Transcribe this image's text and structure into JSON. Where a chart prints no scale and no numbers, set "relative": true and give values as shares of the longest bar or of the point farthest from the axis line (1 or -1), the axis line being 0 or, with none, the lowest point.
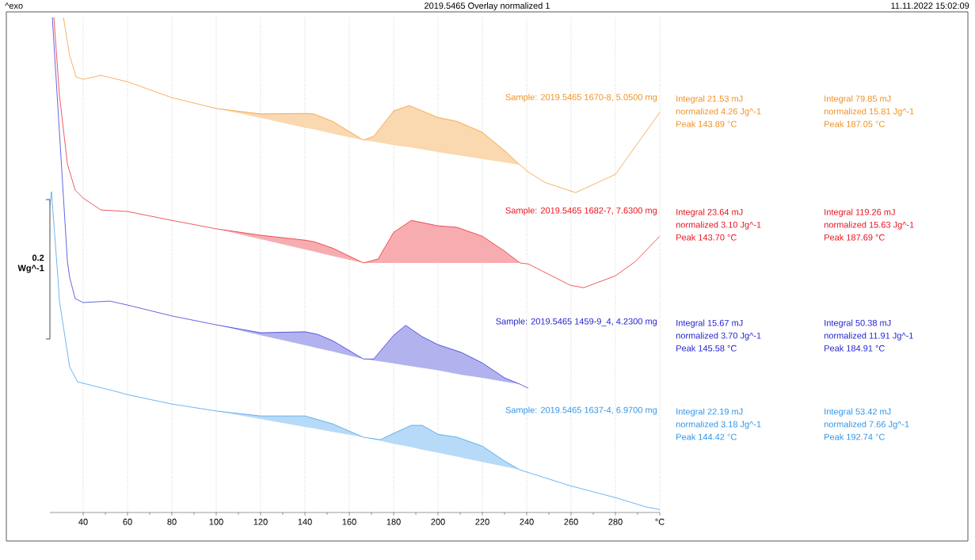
{
  "chart_data": {
    "type": "line",
    "title": "2019.5465 Overlay normalized 1",
    "relative": true,
    "xlim": [
      25,
      300
    ],
    "xticks": [
      40,
      60,
      80,
      100,
      120,
      140,
      160,
      180,
      200,
      220,
      240,
      260,
      280,
      {
        "value": 300,
        "label": "°C"
      }
    ],
    "grid": "x",
    "annotations": [
      "^exo",
      "11.11.2022 15:02:09",
      "0.2 Wg^-1",
      "Integral 21.53 mJ",
      "normalized 4.26 Jg^-1",
      "Peak 143.89 °C",
      "Integral 79.85 mJ",
      "normalized 15.81 Jg^-1",
      "Peak 187.05 °C",
      "Integral 23.64 mJ",
      "normalized 3.10 Jg^-1",
      "Peak 143.70 °C",
      "Integral 119.26 mJ",
      "normalized 15.63 Jg^-1",
      "Peak 187.69 °C",
      "Integral 15.67 mJ",
      "normalized 3.70 Jg^-1",
      "Peak 145.58 °C",
      "Integral 50.38 mJ",
      "normalized 11.91 Jg^-1",
      "Peak 184.91 °C",
      "Integral 22.19 mJ",
      "normalized 3.18 Jg^-1",
      "Peak 144.42 °C",
      "Integral 53.42 mJ",
      "normalized 7.66 Jg^-1",
      "Peak 192.74 °C"
    ],
    "series": [
      {
        "name": "Sample: 2019.5465 1670-8, 5.0500 mg",
        "color": "#f0901e",
        "x": [
          31.1,
          33.9,
          36.8,
          40,
          48,
          60,
          80,
          100,
          120,
          140,
          144,
          152.5,
          166.4,
          171,
          180,
          187,
          200,
          208.6,
          220,
          230,
          237,
          240.7,
          248,
          262,
          280,
          300
        ],
        "values": [
          1.0,
          0.923,
          0.88,
          0.875,
          0.883,
          0.87,
          0.838,
          0.816,
          0.805,
          0.806,
          0.805,
          0.79,
          0.752,
          0.76,
          0.811,
          0.822,
          0.798,
          0.79,
          0.768,
          0.731,
          0.702,
          0.688,
          0.667,
          0.646,
          0.683,
          0.808
        ],
        "lower": [
          null,
          null,
          null,
          null,
          null,
          null,
          null,
          0.816,
          0.797,
          0.777,
          0.774,
          0.765,
          0.752,
          0.749,
          0.742,
          0.738,
          0.728,
          0.722,
          0.714,
          0.707,
          0.702,
          null,
          null,
          null,
          null,
          null
        ],
        "upper": [
          null,
          null,
          null,
          null,
          null,
          null,
          null,
          0.816,
          0.805,
          0.806,
          0.805,
          0.79,
          0.752,
          0.76,
          0.811,
          0.822,
          0.798,
          0.79,
          0.768,
          0.731,
          0.702,
          null,
          null,
          null,
          null,
          null
        ]
      },
      {
        "name": "Sample: 2019.5465 1682-7, 7.6300 mg",
        "color": "#e8141e",
        "x": [
          26.8,
          29.3,
          32.9,
          36.4,
          40,
          48,
          60,
          80,
          100,
          120,
          140,
          144,
          152.5,
          166.4,
          173,
          180,
          188,
          200,
          208.6,
          220,
          230,
          237,
          240.7,
          259.6,
          265.7,
          280,
          289,
          300
        ],
        "values": [
          1.0,
          0.843,
          0.704,
          0.651,
          0.635,
          0.611,
          0.608,
          0.59,
          0.573,
          0.56,
          0.55,
          0.547,
          0.534,
          0.504,
          0.512,
          0.566,
          0.59,
          0.579,
          0.576,
          0.558,
          0.528,
          0.504,
          0.502,
          0.459,
          0.454,
          0.478,
          0.507,
          0.558
        ],
        "lower": [
          null,
          null,
          null,
          null,
          null,
          null,
          null,
          null,
          0.573,
          0.552,
          0.531,
          0.527,
          0.518,
          0.504,
          0.504,
          0.504,
          0.504,
          0.504,
          0.504,
          0.504,
          0.504,
          0.504,
          null,
          null,
          null,
          null,
          null,
          null
        ],
        "upper": [
          null,
          null,
          null,
          null,
          null,
          null,
          null,
          null,
          0.573,
          0.56,
          0.55,
          0.547,
          0.534,
          0.504,
          0.512,
          0.566,
          0.59,
          0.579,
          0.576,
          0.558,
          0.528,
          0.504,
          null,
          null,
          null,
          null,
          null,
          null
        ]
      },
      {
        "name": "Sample: 2019.5465 1459-9_4, 4.2300 mg",
        "color": "#2424d2",
        "x": [
          26.1,
          32.9,
          33.9,
          36.4,
          40,
          52,
          60,
          80,
          100,
          120,
          140,
          145.6,
          152.5,
          166.4,
          171,
          180,
          185.4,
          192.9,
          200,
          210.7,
          220,
          230,
          237,
          240.7
        ],
        "values": [
          1.0,
          0.507,
          0.475,
          0.432,
          0.424,
          0.427,
          0.419,
          0.397,
          0.379,
          0.363,
          0.365,
          0.36,
          0.347,
          0.31,
          0.31,
          0.358,
          0.378,
          0.355,
          0.339,
          0.323,
          0.302,
          0.272,
          0.259,
          0.251
        ],
        "lower": [
          null,
          null,
          null,
          null,
          null,
          null,
          null,
          null,
          0.379,
          0.358,
          0.338,
          0.332,
          0.325,
          0.31,
          0.307,
          0.301,
          0.297,
          0.292,
          0.287,
          0.278,
          0.272,
          0.264,
          0.259,
          null
        ],
        "upper": [
          null,
          null,
          null,
          null,
          null,
          null,
          null,
          null,
          0.379,
          0.363,
          0.365,
          0.36,
          0.347,
          0.31,
          0.31,
          0.358,
          0.378,
          0.355,
          0.339,
          0.323,
          0.302,
          0.272,
          0.259,
          null
        ]
      },
      {
        "name": "Sample: 2019.5465 1637-4, 6.9700 mg",
        "color": "#2f95e8",
        "x": [
          25,
          25.7,
          28.6,
          29.3,
          33.9,
          37.5,
          40,
          56,
          60,
          80,
          100,
          120,
          140,
          144,
          152.5,
          166.4,
          174,
          180,
          188,
          192.9,
          200,
          208.6,
          220,
          230,
          237,
          259.6,
          280,
          294,
          300
        ],
        "values": [
          0.619,
          0.648,
          0.475,
          0.427,
          0.294,
          0.264,
          0.261,
          0.243,
          0.238,
          0.219,
          0.205,
          0.195,
          0.195,
          0.19,
          0.179,
          0.152,
          0.147,
          0.16,
          0.176,
          0.176,
          0.158,
          0.152,
          0.134,
          0.104,
          0.086,
          0.054,
          0.03,
          0.011,
          0.006
        ],
        "lower": [
          null,
          null,
          null,
          null,
          null,
          null,
          null,
          null,
          null,
          null,
          0.205,
          0.1888,
          0.173,
          0.17,
          0.163,
          0.152,
          0.145,
          0.139,
          0.132,
          0.127,
          0.121,
          0.113,
          0.102,
          0.093,
          0.086,
          null,
          null,
          null,
          null
        ],
        "upper": [
          null,
          null,
          null,
          null,
          null,
          null,
          null,
          null,
          null,
          null,
          0.205,
          0.195,
          0.195,
          0.19,
          0.179,
          0.152,
          0.147,
          0.16,
          0.176,
          0.176,
          0.158,
          0.152,
          0.134,
          0.104,
          0.086,
          null,
          null,
          null,
          null
        ]
      }
    ]
  }
}
